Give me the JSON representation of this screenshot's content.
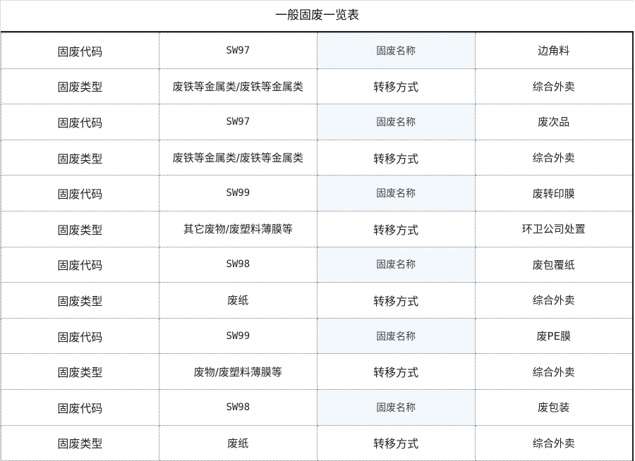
{
  "title": "一般固废一览表",
  "labels": {
    "code": "固废代码",
    "type": "固废类型",
    "name": "固废名称",
    "transfer": "转移方式"
  },
  "colors": {
    "name_cell_bg": "#f3f8fd",
    "border": "#222222"
  },
  "records": [
    {
      "code": "SW97",
      "name": "边角料",
      "type": "废铁等金属类/废铁等金属类",
      "transfer": "综合外卖"
    },
    {
      "code": "SW97",
      "name": "废次品",
      "type": "废铁等金属类/废铁等金属类",
      "transfer": "综合外卖"
    },
    {
      "code": "SW99",
      "name": "废转印膜",
      "type": "其它废物/废塑料薄膜等",
      "transfer": "环卫公司处置"
    },
    {
      "code": "SW98",
      "name": "废包覆纸",
      "type": "废纸",
      "transfer": "综合外卖"
    },
    {
      "code": "SW99",
      "name": "废PE膜",
      "type": "废物/废塑料薄膜等",
      "transfer": "综合外卖"
    },
    {
      "code": "SW98",
      "name": "废包装",
      "type": "废纸",
      "transfer": "综合外卖"
    }
  ]
}
